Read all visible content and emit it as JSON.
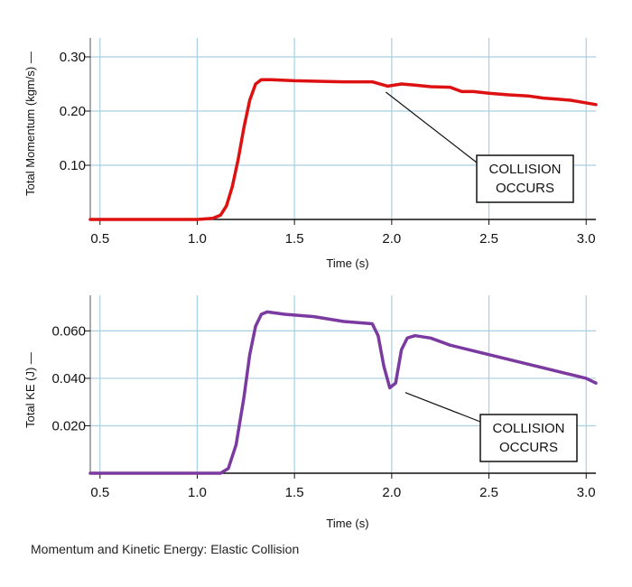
{
  "caption": "Momentum and Kinetic Energy: Elastic Collision",
  "chart_data": [
    {
      "type": "line",
      "title": "",
      "xlabel": "Time (s)",
      "ylabel": "Total Momentum (kgm/s) —",
      "xlim": [
        0.45,
        3.05
      ],
      "ylim": [
        0.0,
        0.335
      ],
      "x_ticks": [
        0.5,
        1.0,
        1.5,
        2.0,
        2.5,
        3.0
      ],
      "x_tick_labels": [
        "0.5",
        "1.0",
        "1.5",
        "2.0",
        "2.5",
        "3.0"
      ],
      "y_ticks": [
        0.1,
        0.2,
        0.3
      ],
      "y_tick_labels": [
        "0.10",
        "0.20",
        "0.30"
      ],
      "grid": true,
      "series": [
        {
          "color": "#dd1111",
          "x": [
            0.45,
            1.0,
            1.08,
            1.12,
            1.15,
            1.18,
            1.21,
            1.24,
            1.27,
            1.3,
            1.33,
            1.38,
            1.5,
            1.62,
            1.75,
            1.9,
            1.98,
            2.05,
            2.12,
            2.2,
            2.3,
            2.36,
            2.42,
            2.5,
            2.6,
            2.7,
            2.78,
            2.85,
            2.92,
            3.05
          ],
          "y": [
            0.0,
            0.0,
            0.002,
            0.008,
            0.025,
            0.06,
            0.11,
            0.17,
            0.22,
            0.25,
            0.258,
            0.258,
            0.256,
            0.255,
            0.254,
            0.254,
            0.246,
            0.25,
            0.248,
            0.245,
            0.244,
            0.236,
            0.236,
            0.233,
            0.23,
            0.228,
            0.224,
            0.222,
            0.22,
            0.212
          ]
        }
      ],
      "annotations": [
        {
          "text_lines": [
            "COLLISION",
            "OCCURS"
          ],
          "x": 1.97,
          "y": 0.235
        }
      ]
    },
    {
      "type": "line",
      "title": "",
      "xlabel": "Time (s)",
      "ylabel": "Total KE (J) —",
      "xlim": [
        0.45,
        3.05
      ],
      "ylim": [
        0.0,
        0.075
      ],
      "x_ticks": [
        0.5,
        1.0,
        1.5,
        2.0,
        2.5,
        3.0
      ],
      "x_tick_labels": [
        "0.5",
        "1.0",
        "1.5",
        "2.0",
        "2.5",
        "3.0"
      ],
      "y_ticks": [
        0.02,
        0.04,
        0.06
      ],
      "y_tick_labels": [
        "0.020",
        "0.040",
        "0.060"
      ],
      "grid": true,
      "series": [
        {
          "color": "#7a3aa0",
          "x": [
            0.45,
            1.0,
            1.12,
            1.16,
            1.2,
            1.24,
            1.27,
            1.3,
            1.33,
            1.36,
            1.45,
            1.6,
            1.75,
            1.9,
            1.93,
            1.96,
            1.99,
            2.02,
            2.05,
            2.08,
            2.12,
            2.2,
            2.3,
            2.4,
            2.5,
            2.6,
            2.7,
            2.8,
            2.9,
            3.0,
            3.05
          ],
          "y": [
            0.0,
            0.0,
            0.0,
            0.002,
            0.012,
            0.032,
            0.05,
            0.062,
            0.067,
            0.068,
            0.067,
            0.066,
            0.064,
            0.063,
            0.058,
            0.045,
            0.036,
            0.038,
            0.052,
            0.057,
            0.058,
            0.057,
            0.054,
            0.052,
            0.05,
            0.048,
            0.046,
            0.044,
            0.042,
            0.04,
            0.038
          ]
        }
      ],
      "annotations": [
        {
          "text_lines": [
            "COLLISION",
            "OCCURS"
          ],
          "x": 2.07,
          "y": 0.034
        }
      ]
    }
  ]
}
